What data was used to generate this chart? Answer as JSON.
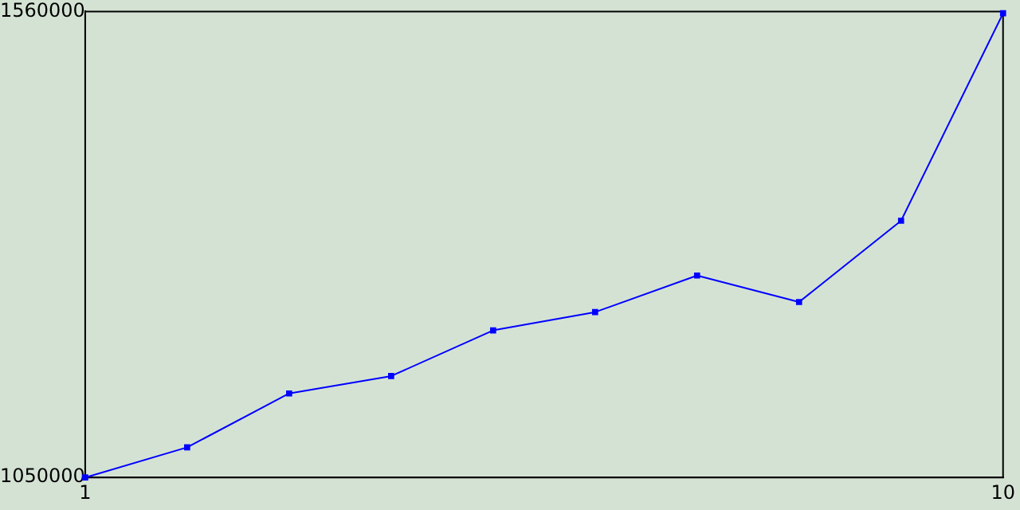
{
  "chart_data": {
    "type": "line",
    "x": [
      1,
      2,
      3,
      4,
      5,
      6,
      7,
      8,
      9,
      10
    ],
    "series": [
      {
        "color": "#0000ff",
        "values": [
          1050000,
          1083000,
          1142000,
          1161000,
          1211000,
          1231000,
          1271000,
          1242000,
          1331000,
          1558000
        ]
      }
    ],
    "xlim": [
      1,
      10
    ],
    "xticks": [
      1,
      10
    ],
    "ylim": [
      1050000,
      1560000
    ],
    "yticks": [
      1050000,
      1560000
    ],
    "grid": false,
    "legend": false,
    "marker": "square",
    "line_style": "solid"
  }
}
